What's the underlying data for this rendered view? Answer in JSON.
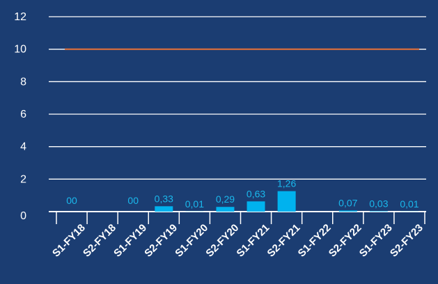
{
  "chart_data": {
    "type": "bar",
    "categories": [
      "S1-FY18",
      "S2-FY18",
      "S1-FY19",
      "S2-FY19",
      "S1-FY20",
      "S2-FY20",
      "S1-FY21",
      "S2-FY21",
      "S1-FY22",
      "S2-FY22",
      "S1-FY23",
      "S2-FY23"
    ],
    "series": [
      {
        "values": [
          0,
          null,
          0,
          0.33,
          0.01,
          0.29,
          0.63,
          1.26,
          null,
          0.07,
          0.03,
          0.01
        ],
        "labels": [
          "00",
          "",
          "00",
          "0,33",
          "0,01",
          "0,29",
          "0,63",
          "1,26",
          "",
          "0,07",
          "0,03",
          "0,01"
        ]
      },
      {
        "type": "line",
        "value": 10
      }
    ],
    "yticks": [
      "0",
      "2",
      "4",
      "6",
      "8",
      "10",
      "12"
    ],
    "ylim": [
      0,
      12
    ],
    "grid": true,
    "colors": {
      "background": "#1b3d72",
      "bar": "#00b2ee",
      "line": "#e2703a",
      "grid": "#ffffff",
      "label": "#1ab8ec"
    }
  }
}
